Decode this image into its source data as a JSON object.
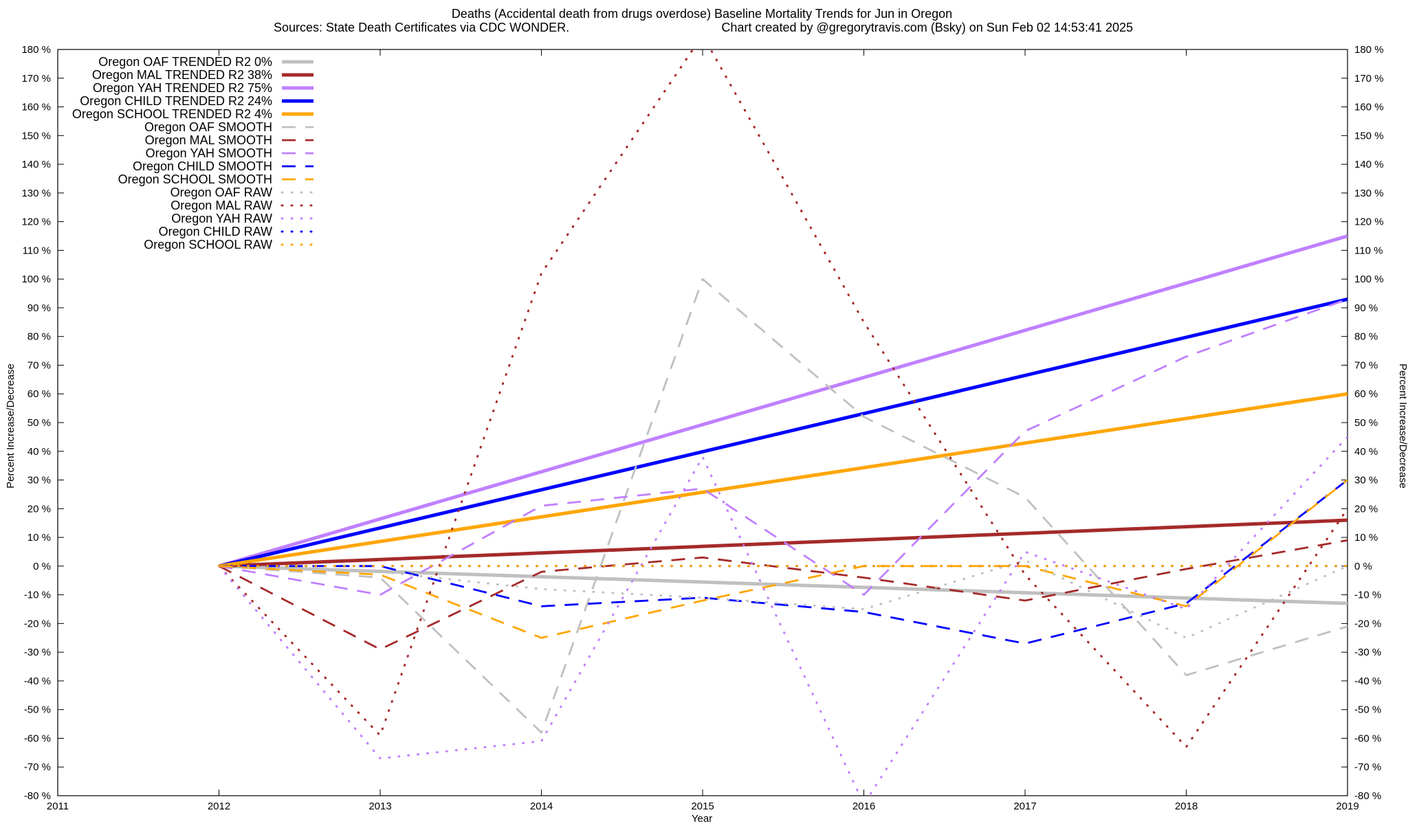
{
  "chart_data": {
    "type": "line",
    "title": "Deaths (Accidental death from drugs overdose)  Baseline Mortality Trends for Jun in Oregon",
    "subtitle_left": "Sources: State Death Certificates via CDC WONDER.",
    "subtitle_right": "Chart created by @gregorytravis.com (Bsky) on Sun Feb 02 14:53:41 2025",
    "xlabel": "Year",
    "ylabel_left": "Percent Increase/Decrease",
    "ylabel_right": "Percent Increase/Decrease",
    "xlim": [
      2011,
      2019
    ],
    "ylim": [
      -80,
      180
    ],
    "x_ticks": [
      2011,
      2012,
      2013,
      2014,
      2015,
      2016,
      2017,
      2018,
      2019
    ],
    "y_ticks": [
      -80,
      -70,
      -60,
      -50,
      -40,
      -30,
      -20,
      -10,
      0,
      10,
      20,
      30,
      40,
      50,
      60,
      70,
      80,
      90,
      100,
      110,
      120,
      130,
      140,
      150,
      160,
      170,
      180
    ],
    "y_tick_suffix": " %",
    "grid": false,
    "legend_position": "top-left",
    "series": [
      {
        "name": "Oregon OAF TRENDED R2  0%",
        "style": "solid",
        "color": "#c0c0c0",
        "x": [
          2012,
          2019
        ],
        "y": [
          0,
          -13
        ]
      },
      {
        "name": "Oregon MAL TRENDED R2  38%",
        "style": "solid",
        "color": "#a52a2a",
        "x": [
          2012,
          2019
        ],
        "y": [
          0,
          16
        ]
      },
      {
        "name": "Oregon YAH TRENDED R2  75%",
        "style": "solid",
        "color": "#c080ff",
        "x": [
          2012,
          2019
        ],
        "y": [
          0,
          115
        ]
      },
      {
        "name": "Oregon CHILD TRENDED R2  24%",
        "style": "solid",
        "color": "#0000ff",
        "x": [
          2012,
          2019
        ],
        "y": [
          0,
          93
        ]
      },
      {
        "name": "Oregon SCHOOL TRENDED R2   4%",
        "style": "solid",
        "color": "#ffa500",
        "x": [
          2012,
          2019
        ],
        "y": [
          0,
          60
        ]
      },
      {
        "name": "Oregon OAF SMOOTH",
        "style": "dashed",
        "color": "#c0c0c0",
        "x": [
          2012,
          2013,
          2014,
          2015,
          2016,
          2017,
          2018,
          2019
        ],
        "y": [
          0,
          -4,
          -58,
          100,
          52,
          24,
          -38,
          -21
        ]
      },
      {
        "name": "Oregon MAL SMOOTH",
        "style": "dashed",
        "color": "#a52a2a",
        "x": [
          2012,
          2013,
          2014,
          2015,
          2016,
          2017,
          2018,
          2019
        ],
        "y": [
          0,
          -29,
          -2,
          3,
          -4,
          -12,
          -1,
          9
        ]
      },
      {
        "name": "Oregon YAH SMOOTH",
        "style": "dashed",
        "color": "#c080ff",
        "x": [
          2012,
          2013,
          2014,
          2015,
          2016,
          2017,
          2018,
          2019
        ],
        "y": [
          0,
          -10,
          21,
          27,
          -10,
          47,
          73,
          93
        ]
      },
      {
        "name": "Oregon CHILD SMOOTH",
        "style": "dashed",
        "color": "#0000ff",
        "x": [
          2012,
          2013,
          2014,
          2015,
          2016,
          2017,
          2018,
          2019
        ],
        "y": [
          0,
          0,
          -14,
          -11,
          -16,
          -27,
          -13,
          30
        ]
      },
      {
        "name": "Oregon SCHOOL SMOOTH",
        "style": "dashed",
        "color": "#ffa500",
        "x": [
          2012,
          2013,
          2014,
          2015,
          2016,
          2017,
          2018,
          2019
        ],
        "y": [
          0,
          -3,
          -25,
          -12,
          0,
          0,
          -14,
          30
        ]
      },
      {
        "name": "Oregon OAF RAW",
        "style": "dotted",
        "color": "#c0c0c0",
        "x": [
          2012,
          2013,
          2014,
          2015,
          2016,
          2017,
          2018,
          2019
        ],
        "y": [
          0,
          -2,
          -8,
          -11,
          -15,
          2,
          -25,
          0
        ]
      },
      {
        "name": "Oregon MAL RAW",
        "style": "dotted",
        "color": "#a52a2a",
        "x": [
          2012,
          2013,
          2014,
          2015,
          2016,
          2017,
          2018,
          2019
        ],
        "y": [
          0,
          -59,
          102,
          185,
          85,
          -3,
          -63,
          20
        ]
      },
      {
        "name": "Oregon YAH RAW",
        "style": "dotted",
        "color": "#c080ff",
        "x": [
          2012,
          2013,
          2014,
          2015,
          2016,
          2017,
          2018,
          2019
        ],
        "y": [
          0,
          -67,
          -61,
          38,
          -83,
          5,
          -15,
          45
        ]
      },
      {
        "name": "Oregon CHILD RAW",
        "style": "dotted",
        "color": "#0000ff",
        "x": [
          2012,
          2013,
          2014,
          2015,
          2016,
          2017,
          2018,
          2019
        ],
        "y": [
          0,
          0,
          0,
          0,
          0,
          0,
          0,
          0
        ]
      },
      {
        "name": "Oregon SCHOOL RAW",
        "style": "dotted",
        "color": "#ffa500",
        "x": [
          2012,
          2013,
          2014,
          2015,
          2016,
          2017,
          2018,
          2019
        ],
        "y": [
          0,
          0,
          0,
          0,
          0,
          0,
          0,
          0
        ]
      }
    ]
  }
}
